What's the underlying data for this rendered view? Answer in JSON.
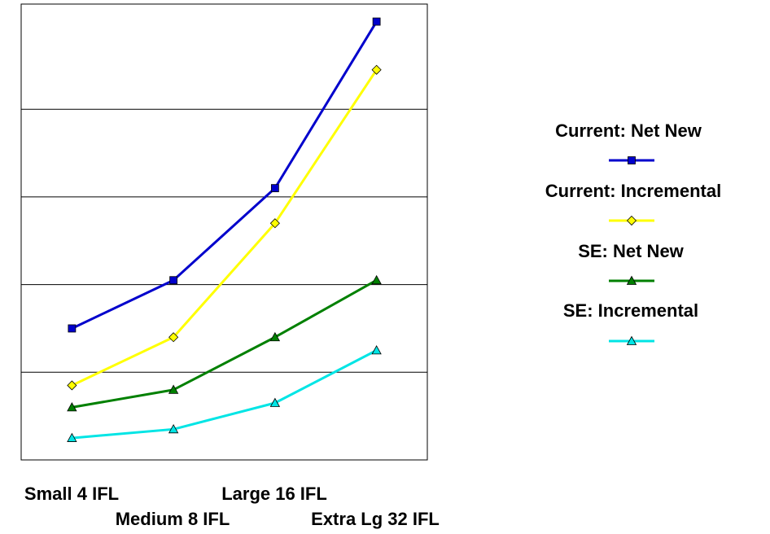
{
  "chart_data": {
    "type": "line",
    "categories": [
      "Small 4 IFL",
      "Medium 8 IFL",
      "Large 16 IFL",
      "Extra Lg 32 IFL"
    ],
    "series": [
      {
        "name": "Current: Net New",
        "values": [
          3.0,
          4.1,
          6.2,
          10.0
        ],
        "color": "#0000CC",
        "marker": "square"
      },
      {
        "name": "Current: Incremental",
        "values": [
          1.7,
          2.8,
          5.4,
          8.9
        ],
        "color": "#FFFF00",
        "marker": "diamond"
      },
      {
        "name": "SE: Net New",
        "values": [
          1.2,
          1.6,
          2.8,
          4.1
        ],
        "color": "#008000",
        "marker": "triangle"
      },
      {
        "name": "SE: Incremental",
        "values": [
          0.5,
          0.7,
          1.3,
          2.5
        ],
        "color": "#00E5E5",
        "marker": "triangle"
      }
    ],
    "ylim": [
      0,
      10.4
    ],
    "gridlines": [
      2,
      4,
      6,
      8,
      10.4
    ],
    "grid": true,
    "legend_position": "right"
  }
}
